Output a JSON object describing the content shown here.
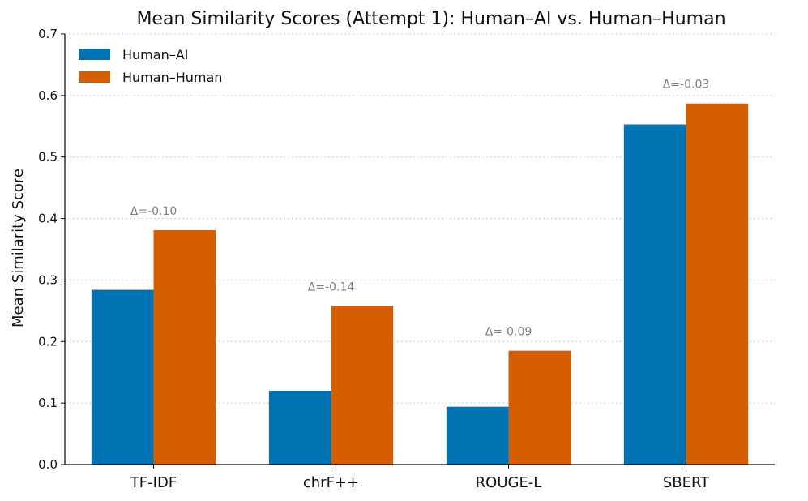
{
  "chart_data": {
    "type": "bar",
    "title": "Mean Similarity Scores (Attempt 1): Human–AI vs. Human–Human",
    "xlabel": "",
    "ylabel": "Mean Similarity Score",
    "ylim": [
      0,
      0.7
    ],
    "yticks": [
      "0.0",
      "0.1",
      "0.2",
      "0.3",
      "0.4",
      "0.5",
      "0.6",
      "0.7"
    ],
    "grid": "horizontal-dotted",
    "legend_position": "top-left",
    "categories": [
      "TF-IDF",
      "chrF++",
      "ROUGE-L",
      "SBERT"
    ],
    "series": [
      {
        "name": "Human–AI",
        "color": "#0072b2",
        "values": [
          0.284,
          0.12,
          0.094,
          0.553
        ]
      },
      {
        "name": "Human–Human",
        "color": "#d55e00",
        "values": [
          0.381,
          0.258,
          0.185,
          0.587
        ]
      }
    ],
    "annotations": [
      "Δ=-0.10",
      "Δ=-0.14",
      "Δ=-0.09",
      "Δ=-0.03"
    ]
  }
}
